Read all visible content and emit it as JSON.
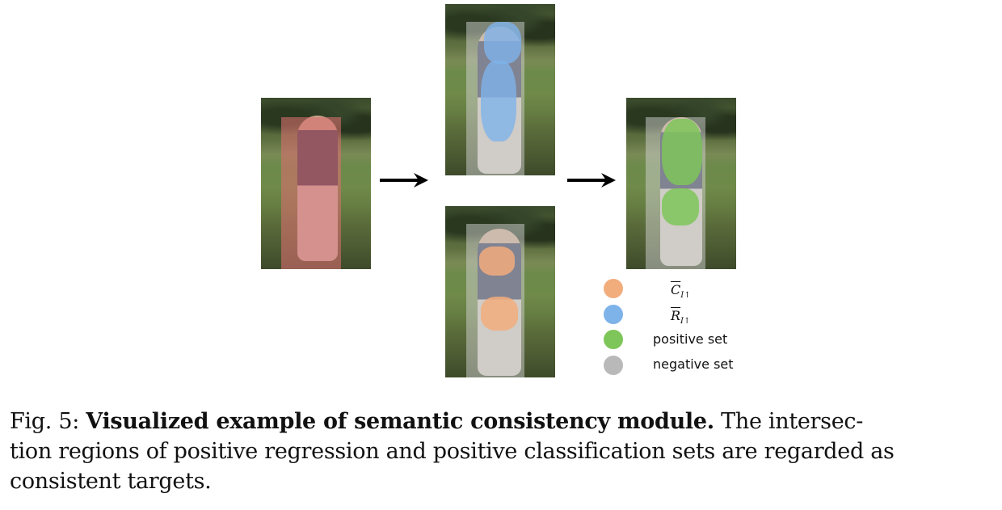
{
  "figure": {
    "legend": [
      {
        "id": "c",
        "label_main": "C",
        "label_sub": "I↑",
        "color": "#f2ad7d"
      },
      {
        "id": "r",
        "label_main": "R",
        "label_sub": "I↑",
        "color": "#7eb3ea"
      },
      {
        "id": "pos",
        "label": "positive set",
        "color": "#7ec659"
      },
      {
        "id": "neg",
        "label": "negative set",
        "color": "#b9b9b9"
      }
    ]
  },
  "caption": {
    "prefix": "Fig. 5:",
    "bold_title": "Visualized example of semantic consistency module.",
    "line1_rest": "The intersec-",
    "line2": "tion regions of positive regression and positive classification sets are regarded as",
    "line3": "consistent targets."
  }
}
